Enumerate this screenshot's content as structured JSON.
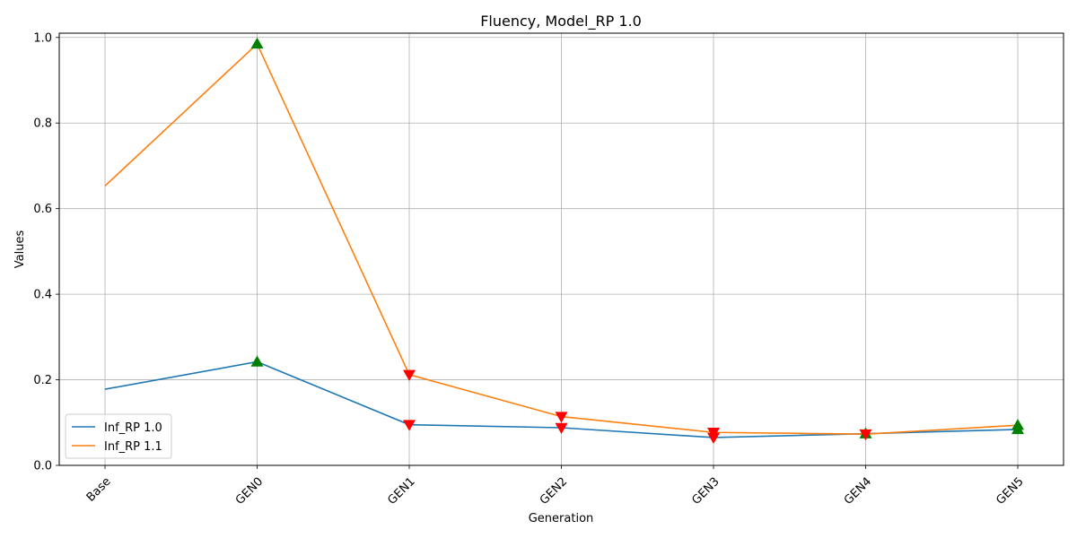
{
  "chart_data": {
    "type": "line",
    "title": "Fluency, Model_RP 1.0",
    "xlabel": "Generation",
    "ylabel": "Values",
    "categories": [
      "Base",
      "GEN0",
      "GEN1",
      "GEN2",
      "GEN3",
      "GEN4",
      "GEN5"
    ],
    "ylim": [
      0,
      1.01
    ],
    "yticks": [
      0.0,
      0.2,
      0.4,
      0.6,
      0.8,
      1.0
    ],
    "ytick_labels": [
      "0.0",
      "0.2",
      "0.4",
      "0.6",
      "0.8",
      "1.0"
    ],
    "grid": true,
    "legend_position": "lower-left",
    "series": [
      {
        "name": "Inf_RP 1.0",
        "color": "#1f77b4",
        "values": [
          0.178,
          0.242,
          0.095,
          0.088,
          0.065,
          0.074,
          0.084
        ],
        "markers": [
          null,
          "up",
          "down",
          "down",
          "down",
          "up",
          "up"
        ]
      },
      {
        "name": "Inf_RP 1.1",
        "color": "#ff7f0e",
        "values": [
          0.653,
          0.985,
          0.212,
          0.114,
          0.077,
          0.073,
          0.094
        ],
        "markers": [
          null,
          "up",
          "down",
          "down",
          "down",
          "down",
          "up"
        ]
      }
    ],
    "marker_colors": {
      "up": "#008000",
      "down": "#ff0000"
    }
  }
}
